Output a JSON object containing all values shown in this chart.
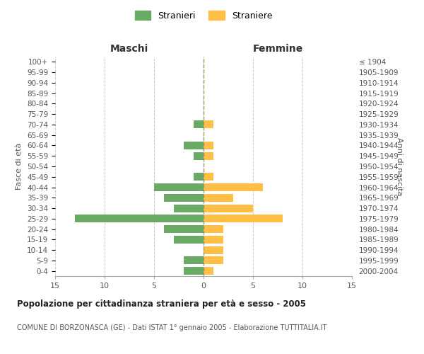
{
  "age_groups": [
    "0-4",
    "5-9",
    "10-14",
    "15-19",
    "20-24",
    "25-29",
    "30-34",
    "35-39",
    "40-44",
    "45-49",
    "50-54",
    "55-59",
    "60-64",
    "65-69",
    "70-74",
    "75-79",
    "80-84",
    "85-89",
    "90-94",
    "95-99",
    "100+"
  ],
  "birth_years": [
    "2000-2004",
    "1995-1999",
    "1990-1994",
    "1985-1989",
    "1980-1984",
    "1975-1979",
    "1970-1974",
    "1965-1969",
    "1960-1964",
    "1955-1959",
    "1950-1954",
    "1945-1949",
    "1940-1944",
    "1935-1939",
    "1930-1934",
    "1925-1929",
    "1920-1924",
    "1915-1919",
    "1910-1914",
    "1905-1909",
    "≤ 1904"
  ],
  "males": [
    2,
    2,
    0,
    3,
    4,
    13,
    3,
    4,
    5,
    1,
    0,
    1,
    2,
    0,
    1,
    0,
    0,
    0,
    0,
    0,
    0
  ],
  "females": [
    1,
    2,
    2,
    2,
    2,
    8,
    5,
    3,
    6,
    1,
    0,
    1,
    1,
    0,
    1,
    0,
    0,
    0,
    0,
    0,
    0
  ],
  "male_color": "#6aaa64",
  "female_color": "#ffbf47",
  "center_line_color": "#999966",
  "grid_color": "#cccccc",
  "title": "Popolazione per cittadinanza straniera per età e sesso - 2005",
  "subtitle": "COMUNE DI BORZONASCA (GE) - Dati ISTAT 1° gennaio 2005 - Elaborazione TUTTITALIA.IT",
  "xlabel_left": "Maschi",
  "xlabel_right": "Femmine",
  "ylabel_left": "Fasce di età",
  "ylabel_right": "Anni di nascita",
  "legend_male": "Stranieri",
  "legend_female": "Straniere",
  "xlim": 15,
  "background_color": "#ffffff"
}
